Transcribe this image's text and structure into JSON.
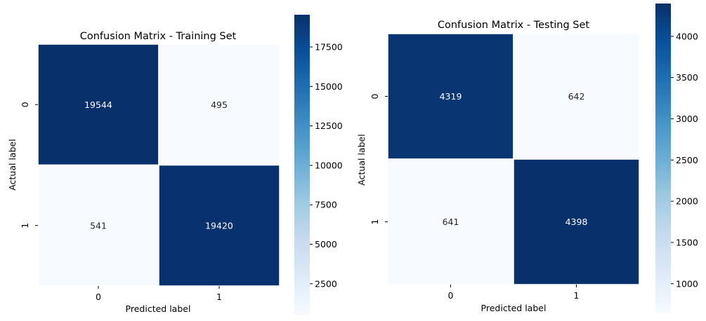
{
  "chart_data": [
    {
      "type": "heatmap",
      "title": "Confusion Matrix - Training Set",
      "xlabel": "Predicted label",
      "ylabel": "Actual label",
      "x_categories": [
        "0",
        "1"
      ],
      "y_categories": [
        "0",
        "1"
      ],
      "values": [
        [
          19544,
          495
        ],
        [
          541,
          19420
        ]
      ],
      "colormap": "Blues",
      "colorbar": {
        "min": 495,
        "max": 19544,
        "ticks": [
          2500,
          5000,
          7500,
          10000,
          12500,
          15000,
          17500
        ]
      }
    },
    {
      "type": "heatmap",
      "title": "Confusion Matrix - Testing Set",
      "xlabel": "Predicted label",
      "ylabel": "Actual label",
      "x_categories": [
        "0",
        "1"
      ],
      "y_categories": [
        "0",
        "1"
      ],
      "values": [
        [
          4319,
          642
        ],
        [
          641,
          4398
        ]
      ],
      "colormap": "Blues",
      "colorbar": {
        "min": 641,
        "max": 4398,
        "ticks": [
          1000,
          1500,
          2000,
          2500,
          3000,
          3500,
          4000
        ]
      }
    }
  ]
}
